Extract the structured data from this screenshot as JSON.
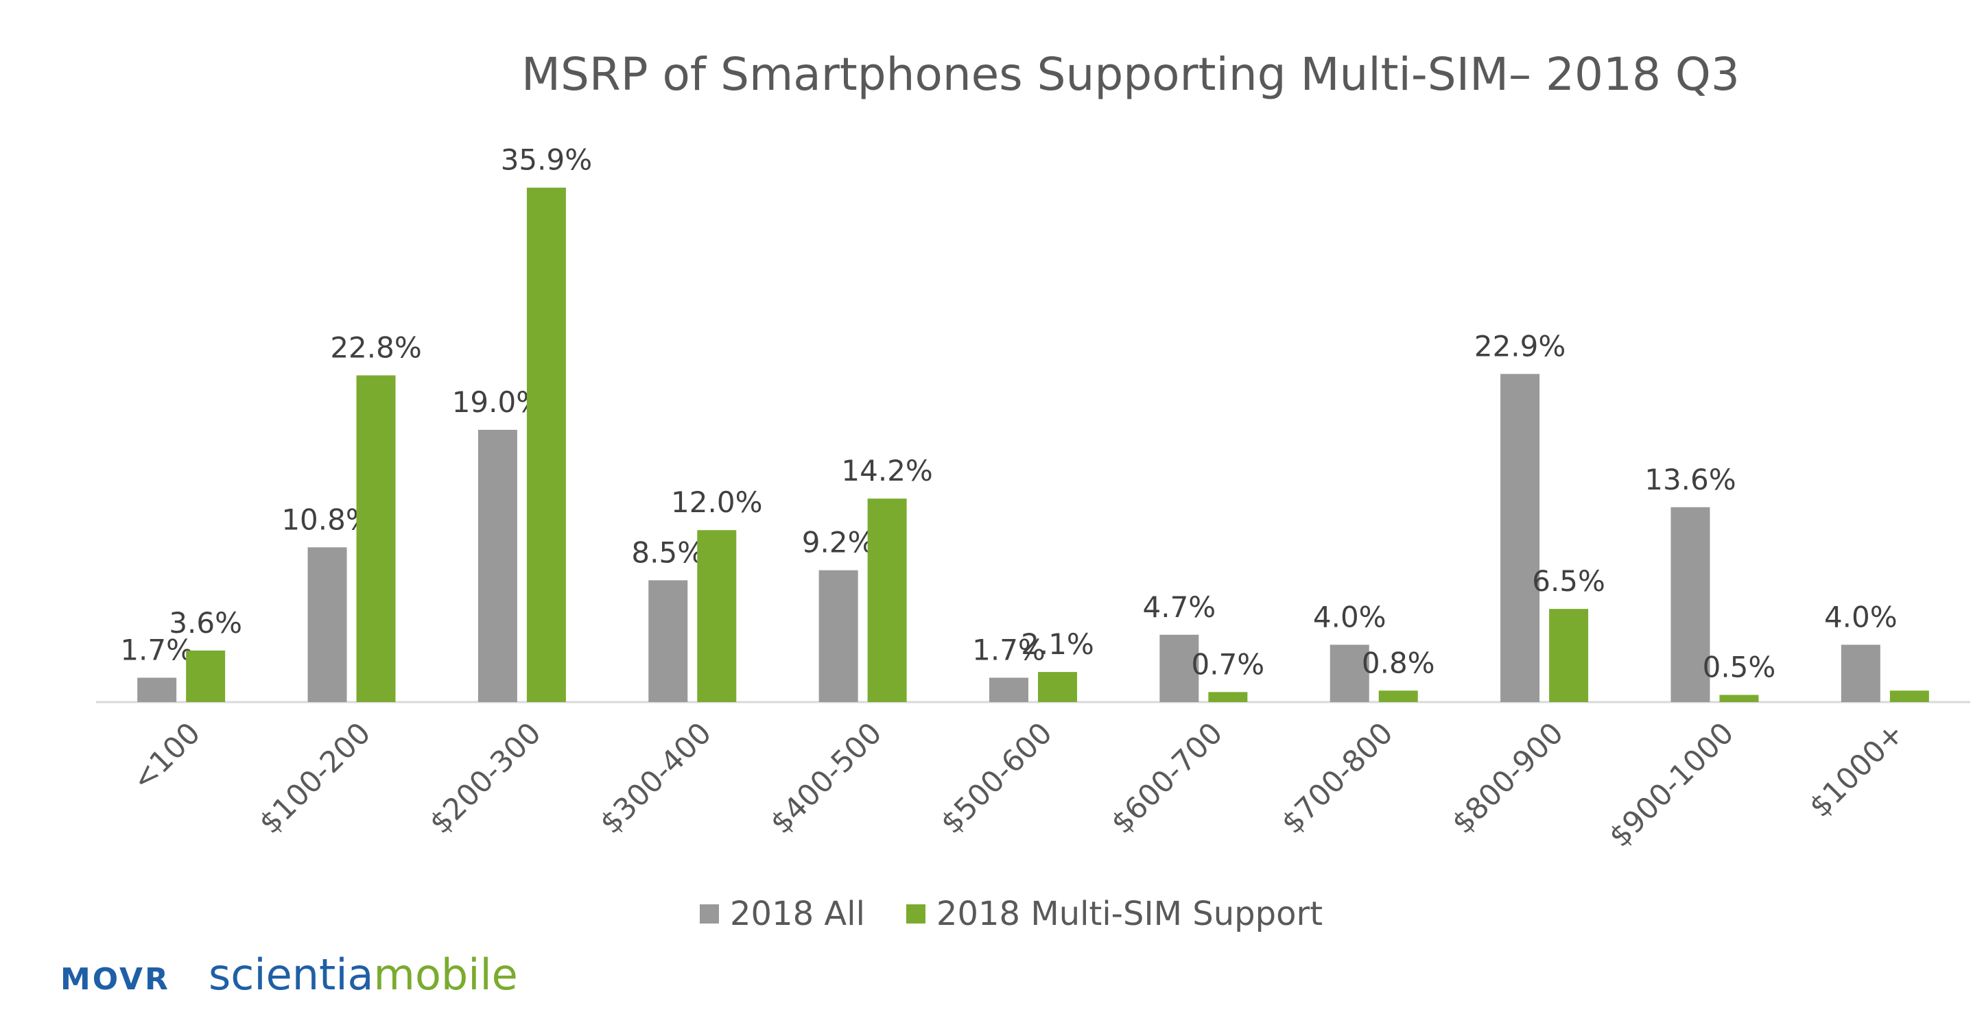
{
  "chart_data": {
    "type": "bar",
    "title": "MSRP of Smartphones Supporting Multi-SIM– 2018 Q3",
    "categories": [
      "<100",
      "$100-200",
      "$200-300",
      "$300-400",
      "$400-500",
      "$500-600",
      "$600-700",
      "$700-800",
      "$800-900",
      "$900-1000",
      "$1000+"
    ],
    "series": [
      {
        "name": "2018 All",
        "color": "#999999",
        "values": [
          1.7,
          10.8,
          19.0,
          8.5,
          9.2,
          1.7,
          4.7,
          4.0,
          22.9,
          13.6,
          4.0
        ],
        "labels": [
          "1.7%",
          "10.8%",
          "19.0%",
          "8.5%",
          "9.2%",
          "1.7%",
          "4.7%",
          "4.0%",
          "22.9%",
          "13.6%",
          "4.0%"
        ]
      },
      {
        "name": "2018 Multi-SIM Support",
        "color": "#7aab2f",
        "values": [
          3.6,
          22.8,
          35.9,
          12.0,
          14.2,
          2.1,
          0.7,
          0.8,
          6.5,
          0.5,
          0.8
        ],
        "labels": [
          "3.6%",
          "22.8%",
          "35.9%",
          "12.0%",
          "14.2%",
          "2.1%",
          "0.7%",
          "0.8%",
          "6.5%",
          "0.5%",
          ""
        ]
      }
    ],
    "ylim": [
      0,
      36
    ],
    "grid": false,
    "legend": "bottom"
  },
  "brand": {
    "movr": "MOVR",
    "scientia": "scientia",
    "mobile": "mobile"
  }
}
